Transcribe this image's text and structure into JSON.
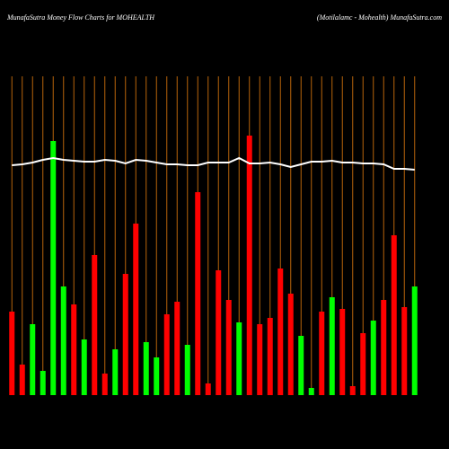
{
  "chart_data": {
    "type": "bar",
    "title": "MunafaSutra  Money Flow  Charts for MOHEALTH",
    "subtitle": "(Motilalamc -  Mohealth) MunafaSutra.com",
    "series": [
      {
        "name": "Money Flow",
        "values": [
          93,
          34,
          79,
          27,
          283,
          121,
          101,
          62,
          156,
          24,
          51,
          135,
          191,
          59,
          42,
          90,
          104,
          56,
          226,
          13,
          139,
          106,
          81,
          289,
          79,
          86,
          141,
          113,
          66,
          8,
          93,
          109,
          96,
          10,
          69,
          83,
          106,
          178,
          98,
          121
        ],
        "colors": [
          "#ff0000",
          "#ff0000",
          "#00ff00",
          "#00ff00",
          "#00ff00",
          "#00ff00",
          "#ff0000",
          "#00ff00",
          "#ff0000",
          "#ff0000",
          "#00ff00",
          "#ff0000",
          "#ff0000",
          "#00ff00",
          "#00ff00",
          "#ff0000",
          "#ff0000",
          "#00ff00",
          "#ff0000",
          "#ff0000",
          "#ff0000",
          "#ff0000",
          "#00ff00",
          "#ff0000",
          "#ff0000",
          "#ff0000",
          "#ff0000",
          "#ff0000",
          "#00ff00",
          "#00ff00",
          "#ff0000",
          "#00ff00",
          "#ff0000",
          "#ff0000",
          "#ff0000",
          "#00ff00",
          "#ff0000",
          "#ff0000",
          "#ff0000",
          "#00ff00"
        ]
      },
      {
        "name": "Price",
        "type": "line",
        "color": "#ffffff",
        "values": [
          256,
          257,
          259,
          262,
          264,
          262,
          261,
          260,
          260,
          262,
          261,
          258,
          262,
          261,
          259,
          257,
          257,
          256,
          256,
          259,
          259,
          259,
          264,
          258,
          258,
          259,
          257,
          254,
          257,
          260,
          260,
          261,
          259,
          259,
          258,
          258,
          257,
          252,
          252,
          251
        ]
      }
    ],
    "ylim": [
      0,
      300
    ],
    "grid_color": "#b8640a"
  }
}
